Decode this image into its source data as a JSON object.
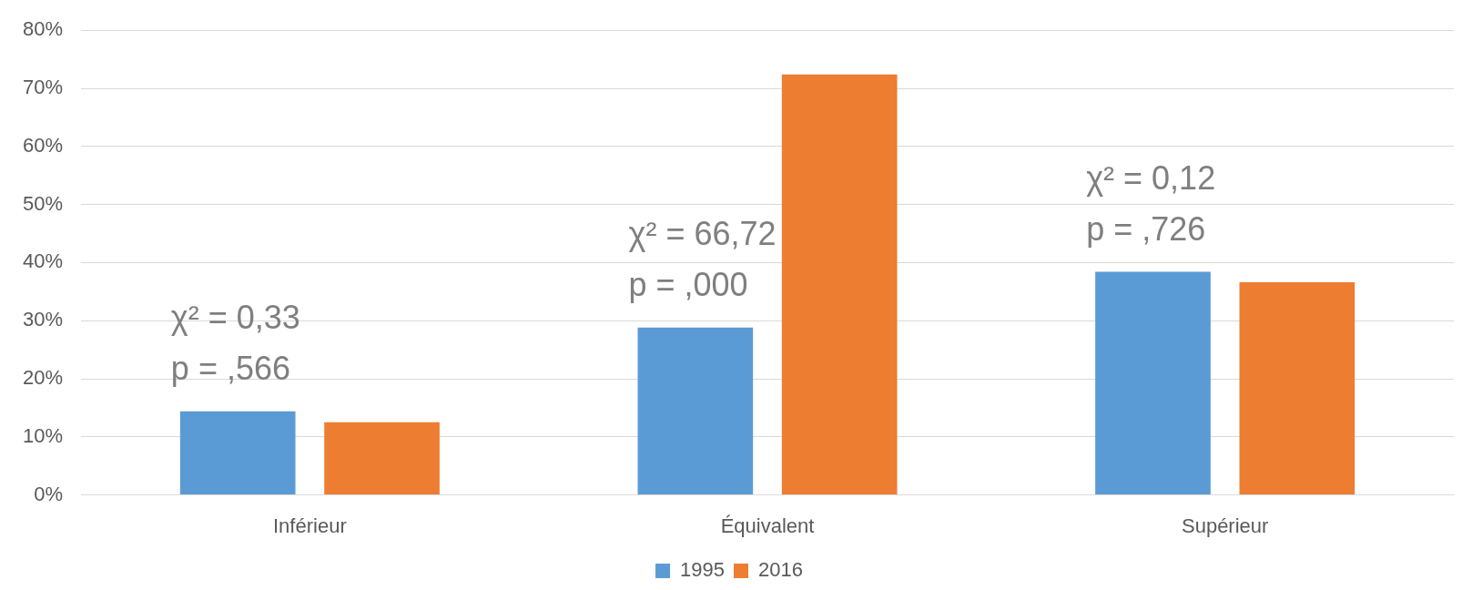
{
  "chart_data": {
    "type": "bar",
    "categories": [
      "Inférieur",
      "Équivalent",
      "Supérieur"
    ],
    "series": [
      {
        "name": "1995",
        "color": "#5b9bd5",
        "values": [
          14.4,
          28.8,
          38.4
        ]
      },
      {
        "name": "2016",
        "color": "#ed7d31",
        "values": [
          12.5,
          72.4,
          36.6
        ]
      }
    ],
    "ylim": [
      0,
      80
    ],
    "yticks": [
      {
        "value": 0,
        "label": "0%"
      },
      {
        "value": 10,
        "label": "10%"
      },
      {
        "value": 20,
        "label": "20%"
      },
      {
        "value": 30,
        "label": "30%"
      },
      {
        "value": 40,
        "label": "40%"
      },
      {
        "value": 50,
        "label": "50%"
      },
      {
        "value": 60,
        "label": "60%"
      },
      {
        "value": 70,
        "label": "70%"
      },
      {
        "value": 80,
        "label": "80%"
      }
    ],
    "grid": "y",
    "legend": "bottom",
    "annotations": [
      "χ² = 0,33",
      "p = ,566",
      "χ² = 66,72",
      "p = ,000",
      "χ² = 0,12",
      "p = ,726"
    ]
  }
}
